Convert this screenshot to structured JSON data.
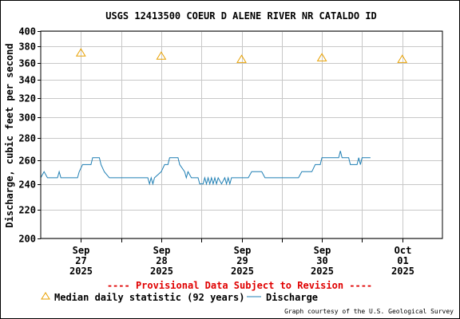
{
  "chart_data": {
    "type": "line",
    "title": "USGS 12413500 COEUR D ALENE RIVER NR CATALDO ID",
    "ylabel": "Discharge, cubic feet per second",
    "xlabel": "",
    "ylim": [
      200,
      400
    ],
    "y_scale": "log",
    "y_ticks": [
      200,
      220,
      240,
      260,
      280,
      300,
      320,
      340,
      360,
      380,
      400
    ],
    "x_range": [
      "2025-09-26T12:00",
      "2025-10-01T12:00"
    ],
    "x_ticks": [
      {
        "at": "2025-09-27T00:00",
        "line1": "Sep",
        "line2": "27",
        "line3": "2025"
      },
      {
        "at": "2025-09-28T00:00",
        "line1": "Sep",
        "line2": "28",
        "line3": "2025"
      },
      {
        "at": "2025-09-29T00:00",
        "line1": "Sep",
        "line2": "29",
        "line3": "2025"
      },
      {
        "at": "2025-09-30T00:00",
        "line1": "Sep",
        "line2": "30",
        "line3": "2025"
      },
      {
        "at": "2025-10-01T00:00",
        "line1": "Oct",
        "line2": "01",
        "line3": "2025"
      }
    ],
    "grid": true,
    "series": [
      {
        "name": "Median daily statistic (92 years)",
        "marker": "triangle",
        "color": "#e8a000",
        "points": [
          {
            "x": "2025-09-27T00:00",
            "y": 372
          },
          {
            "x": "2025-09-28T00:00",
            "y": 368
          },
          {
            "x": "2025-09-29T00:00",
            "y": 364
          },
          {
            "x": "2025-09-30T00:00",
            "y": 366
          },
          {
            "x": "2025-10-01T00:00",
            "y": 364
          }
        ]
      },
      {
        "name": "Discharge",
        "marker": "line",
        "color": "#1f7fb4",
        "points": [
          {
            "x": "2025-09-26T12:00",
            "y": 245
          },
          {
            "x": "2025-09-26T13:00",
            "y": 250
          },
          {
            "x": "2025-09-26T14:00",
            "y": 245
          },
          {
            "x": "2025-09-26T17:00",
            "y": 245
          },
          {
            "x": "2025-09-26T17:30",
            "y": 250
          },
          {
            "x": "2025-09-26T18:00",
            "y": 245
          },
          {
            "x": "2025-09-26T23:00",
            "y": 245
          },
          {
            "x": "2025-09-26T23:30",
            "y": 250
          },
          {
            "x": "2025-09-27T00:30",
            "y": 256
          },
          {
            "x": "2025-09-27T03:00",
            "y": 256
          },
          {
            "x": "2025-09-27T03:30",
            "y": 262
          },
          {
            "x": "2025-09-27T05:30",
            "y": 262
          },
          {
            "x": "2025-09-27T06:00",
            "y": 256
          },
          {
            "x": "2025-09-27T07:00",
            "y": 250
          },
          {
            "x": "2025-09-27T08:30",
            "y": 245
          },
          {
            "x": "2025-09-27T20:00",
            "y": 245
          },
          {
            "x": "2025-09-27T20:30",
            "y": 240
          },
          {
            "x": "2025-09-27T21:00",
            "y": 245
          },
          {
            "x": "2025-09-27T21:30",
            "y": 240
          },
          {
            "x": "2025-09-27T22:00",
            "y": 245
          },
          {
            "x": "2025-09-28T00:00",
            "y": 250
          },
          {
            "x": "2025-09-28T01:00",
            "y": 256
          },
          {
            "x": "2025-09-28T02:00",
            "y": 256
          },
          {
            "x": "2025-09-28T02:30",
            "y": 262
          },
          {
            "x": "2025-09-28T05:00",
            "y": 262
          },
          {
            "x": "2025-09-28T05:30",
            "y": 256
          },
          {
            "x": "2025-09-28T07:00",
            "y": 250
          },
          {
            "x": "2025-09-28T07:30",
            "y": 245
          },
          {
            "x": "2025-09-28T08:00",
            "y": 250
          },
          {
            "x": "2025-09-28T09:00",
            "y": 245
          },
          {
            "x": "2025-09-28T11:00",
            "y": 245
          },
          {
            "x": "2025-09-28T11:30",
            "y": 240
          },
          {
            "x": "2025-09-28T12:30",
            "y": 240
          },
          {
            "x": "2025-09-28T13:00",
            "y": 245
          },
          {
            "x": "2025-09-28T13:30",
            "y": 240
          },
          {
            "x": "2025-09-28T14:00",
            "y": 245
          },
          {
            "x": "2025-09-28T14:30",
            "y": 240
          },
          {
            "x": "2025-09-28T15:00",
            "y": 245
          },
          {
            "x": "2025-09-28T15:30",
            "y": 240
          },
          {
            "x": "2025-09-28T16:00",
            "y": 245
          },
          {
            "x": "2025-09-28T16:30",
            "y": 240
          },
          {
            "x": "2025-09-28T17:00",
            "y": 245
          },
          {
            "x": "2025-09-28T18:00",
            "y": 240
          },
          {
            "x": "2025-09-28T19:00",
            "y": 245
          },
          {
            "x": "2025-09-28T19:30",
            "y": 240
          },
          {
            "x": "2025-09-28T20:00",
            "y": 245
          },
          {
            "x": "2025-09-28T20:30",
            "y": 240
          },
          {
            "x": "2025-09-28T21:00",
            "y": 245
          },
          {
            "x": "2025-09-29T02:00",
            "y": 245
          },
          {
            "x": "2025-09-29T03:00",
            "y": 250
          },
          {
            "x": "2025-09-29T06:00",
            "y": 250
          },
          {
            "x": "2025-09-29T07:00",
            "y": 245
          },
          {
            "x": "2025-09-29T17:00",
            "y": 245
          },
          {
            "x": "2025-09-29T18:00",
            "y": 250
          },
          {
            "x": "2025-09-29T21:00",
            "y": 250
          },
          {
            "x": "2025-09-29T22:00",
            "y": 256
          },
          {
            "x": "2025-09-29T23:30",
            "y": 256
          },
          {
            "x": "2025-09-30T00:00",
            "y": 262
          },
          {
            "x": "2025-09-30T05:00",
            "y": 262
          },
          {
            "x": "2025-09-30T05:30",
            "y": 268
          },
          {
            "x": "2025-09-30T06:00",
            "y": 262
          },
          {
            "x": "2025-09-30T08:00",
            "y": 262
          },
          {
            "x": "2025-09-30T08:30",
            "y": 256
          },
          {
            "x": "2025-09-30T10:30",
            "y": 256
          },
          {
            "x": "2025-09-30T11:00",
            "y": 262
          },
          {
            "x": "2025-09-30T11:30",
            "y": 256
          },
          {
            "x": "2025-09-30T12:00",
            "y": 262
          },
          {
            "x": "2025-09-30T14:30",
            "y": 262
          }
        ]
      }
    ],
    "legend_position": "bottom"
  },
  "footer": {
    "provisional_note": "---- Provisional Data Subject to Revision ----",
    "credit": "Graph courtesy of the U.S. Geological Survey"
  },
  "colors": {
    "median": "#e8a000",
    "discharge": "#1f7fb4",
    "provisional": "#e00000",
    "grid": "#c8c8c8"
  }
}
